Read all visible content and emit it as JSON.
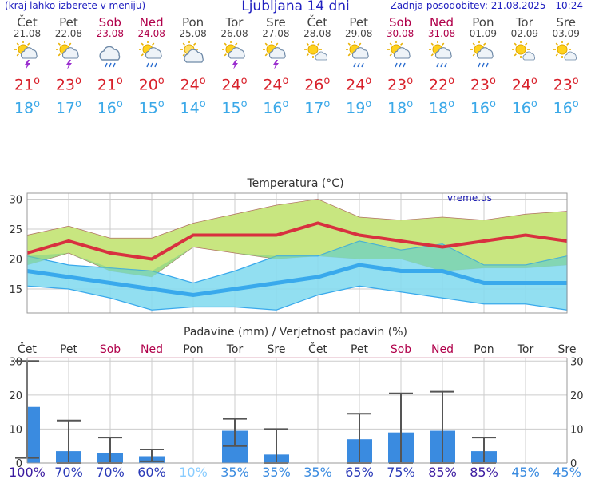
{
  "header": {
    "menu_note": "(kraj lahko izberete v meniju)",
    "title": "Ljubljana 14 dni",
    "updated": "Zadnja posodobitev: 21.08.2025 - 10:24"
  },
  "days": [
    {
      "name": "Čet",
      "date": "21.08",
      "weekend": false,
      "icon": "sun-cloud-lightning-icon",
      "tmax": "21",
      "tmin": "18"
    },
    {
      "name": "Pet",
      "date": "22.08",
      "weekend": false,
      "icon": "sun-cloud-lightning-icon",
      "tmax": "23",
      "tmin": "17"
    },
    {
      "name": "Sob",
      "date": "23.08",
      "weekend": true,
      "icon": "cloud-rain-icon",
      "tmax": "21",
      "tmin": "16"
    },
    {
      "name": "Ned",
      "date": "24.08",
      "weekend": true,
      "icon": "sun-cloud-rain-icon",
      "tmax": "20",
      "tmin": "15"
    },
    {
      "name": "Pon",
      "date": "25.08",
      "weekend": false,
      "icon": "sun-cloud-icon",
      "tmax": "24",
      "tmin": "14"
    },
    {
      "name": "Tor",
      "date": "26.08",
      "weekend": false,
      "icon": "sun-cloud-lightning-icon",
      "tmax": "24",
      "tmin": "15"
    },
    {
      "name": "Sre",
      "date": "27.08",
      "weekend": false,
      "icon": "sun-cloud-lightning-icon",
      "tmax": "24",
      "tmin": "16"
    },
    {
      "name": "Čet",
      "date": "28.08",
      "weekend": false,
      "icon": "sun-small-cloud-icon",
      "tmax": "26",
      "tmin": "17"
    },
    {
      "name": "Pet",
      "date": "29.08",
      "weekend": false,
      "icon": "sun-cloud-rain-icon",
      "tmax": "24",
      "tmin": "19"
    },
    {
      "name": "Sob",
      "date": "30.08",
      "weekend": true,
      "icon": "sun-cloud-rain-icon",
      "tmax": "23",
      "tmin": "18"
    },
    {
      "name": "Ned",
      "date": "31.08",
      "weekend": true,
      "icon": "sun-cloud-rain-icon",
      "tmax": "22",
      "tmin": "18"
    },
    {
      "name": "Pon",
      "date": "01.09",
      "weekend": false,
      "icon": "sun-cloud-rain-icon",
      "tmax": "23",
      "tmin": "16"
    },
    {
      "name": "Tor",
      "date": "02.09",
      "weekend": false,
      "icon": "sun-small-cloud-icon",
      "tmax": "24",
      "tmin": "16"
    },
    {
      "name": "Sre",
      "date": "03.09",
      "weekend": false,
      "icon": "sun-small-cloud-icon",
      "tmax": "23",
      "tmin": "16"
    }
  ],
  "degree_symbol": "o",
  "colors": {
    "max": "#d8303f",
    "max_band": "#c8e680",
    "min": "#39a9ec",
    "min_band": "#86dcef",
    "overlap_band": "#7ccf8a",
    "bar": "#3a8be0",
    "grid": "#cccccc",
    "weekend": "#b0004a",
    "prob": "#2a2aa0"
  },
  "chart_data": [
    {
      "type": "line",
      "title": "Temperatura (°C)",
      "watermark": "vreme.us",
      "ylim": [
        11,
        31
      ],
      "yticks": [
        15,
        20,
        25,
        30
      ],
      "x": [
        "Čet",
        "Pet",
        "Sob",
        "Ned",
        "Pon",
        "Tor",
        "Sre",
        "Čet",
        "Pet",
        "Sob",
        "Ned",
        "Pon",
        "Tor",
        "Sre"
      ],
      "series": [
        {
          "name": "max",
          "values": [
            21,
            23,
            21,
            20,
            24,
            24,
            24,
            26,
            24,
            23,
            22,
            23,
            24,
            23
          ],
          "band_low": [
            19,
            21,
            18,
            17,
            22,
            21,
            20,
            20.5,
            20,
            20,
            18,
            18.5,
            18.5,
            19
          ],
          "band_high": [
            24,
            25.5,
            23.5,
            23.5,
            26,
            27.5,
            29,
            30,
            27,
            26.5,
            27,
            26.5,
            27.5,
            28
          ]
        },
        {
          "name": "min",
          "values": [
            18,
            17,
            16,
            15,
            14,
            15,
            16,
            17,
            19,
            18,
            18,
            16,
            16,
            16
          ],
          "band_low": [
            15.5,
            15,
            13.5,
            11.5,
            12,
            12,
            11.5,
            14,
            15.5,
            14.5,
            13.5,
            12.5,
            12.5,
            11.5
          ],
          "band_high": [
            20.5,
            19,
            18.5,
            18,
            16,
            18,
            20.5,
            20.5,
            23,
            21.5,
            22.5,
            19,
            19,
            20.5
          ]
        }
      ]
    },
    {
      "type": "bar",
      "title": "Padavine (mm) / Verjetnost padavin (%)",
      "ylim": [
        0,
        31
      ],
      "yticks": [
        0,
        10,
        20,
        30
      ],
      "categories": [
        "Čet",
        "Pet",
        "Sob",
        "Ned",
        "Pon",
        "Tor",
        "Sre",
        "Čet",
        "Pet",
        "Sob",
        "Ned",
        "Pon",
        "Tor",
        "Sre"
      ],
      "values": [
        16.5,
        3.5,
        3,
        2,
        0,
        9.5,
        2.5,
        0,
        7,
        9,
        9.5,
        3.5,
        0,
        0
      ],
      "err_low": [
        1.5,
        0,
        0,
        0.5,
        0,
        5,
        0,
        0,
        0,
        0,
        0,
        0,
        0,
        0
      ],
      "err_high": [
        30,
        12.5,
        7.5,
        4,
        0,
        13,
        10,
        0,
        14.5,
        20.5,
        21,
        7.5,
        0,
        0
      ],
      "probabilities": [
        "100%",
        "70%",
        "70%",
        "60%",
        "10%",
        "35%",
        "35%",
        "35%",
        "65%",
        "75%",
        "85%",
        "85%",
        "45%",
        "45%"
      ]
    }
  ]
}
